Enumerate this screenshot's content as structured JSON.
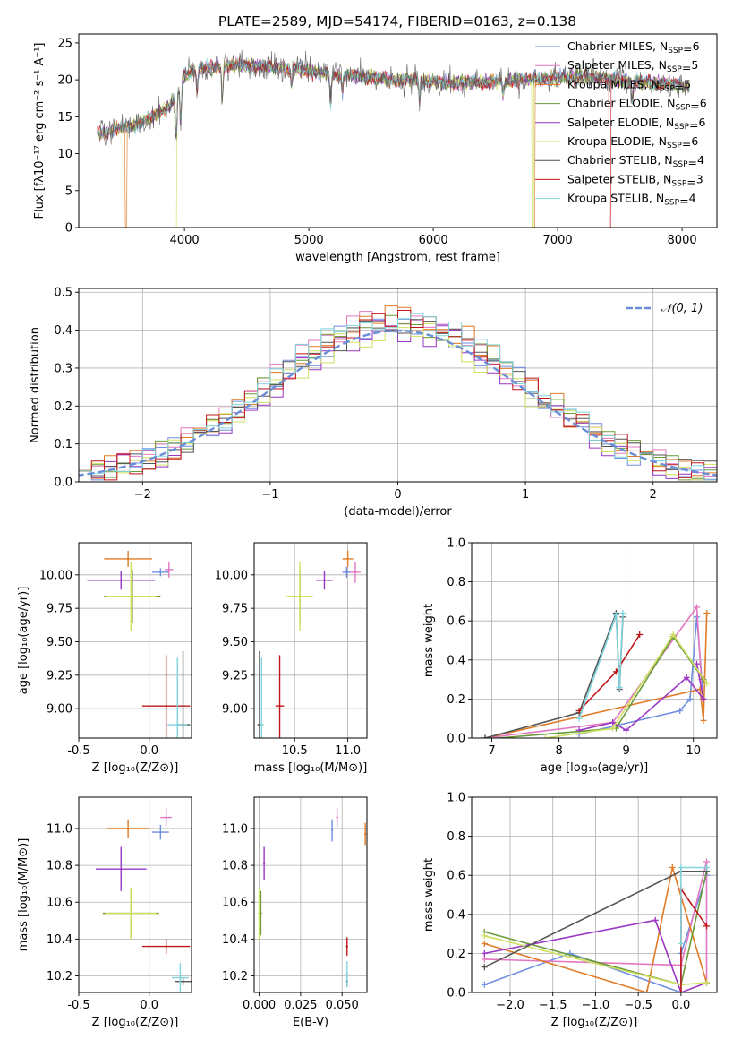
{
  "figure": {
    "title": "PLATE=2589, MJD=54174, FIBERID=0163, z=0.138"
  },
  "colors": [
    "#6f8fe0",
    "#e377c2",
    "#e07b28",
    "#6a9a3a",
    "#9b37c4",
    "#cfe060",
    "#555555",
    "#c0161b",
    "#80d4dc"
  ],
  "chart_data": [
    {
      "id": "spectrum",
      "type": "line",
      "xlabel": "wavelength [Angstrom, rest frame]",
      "ylabel": "Flux [fλ10⁻¹⁷ erg cm⁻² s⁻¹ A⁻¹]",
      "xlim": [
        3150,
        8280
      ],
      "ylim": [
        0,
        26.2
      ],
      "xticks": [
        4000,
        5000,
        6000,
        7000,
        8000
      ],
      "yticks": [
        0,
        5,
        10,
        15,
        20,
        25
      ],
      "legend_position": "top-right",
      "legend": [
        {
          "name": "Chabrier MILES",
          "n_ssp": "6"
        },
        {
          "name": "Salpeter MILES",
          "n_ssp": "5"
        },
        {
          "name": "Kroupa MILES",
          "n_ssp": "5"
        },
        {
          "name": "Chabrier ELODIE",
          "n_ssp": "6"
        },
        {
          "name": "Salpeter ELODIE",
          "n_ssp": "6"
        },
        {
          "name": "Kroupa ELODIE",
          "n_ssp": "6"
        },
        {
          "name": "Chabrier STELIB",
          "n_ssp": "4"
        },
        {
          "name": "Salpeter STELIB",
          "n_ssp": "3"
        },
        {
          "name": "Kroupa STELIB",
          "n_ssp": "4"
        }
      ],
      "continuum": {
        "x": [
          3300,
          3450,
          3600,
          3700,
          3800,
          3900,
          4000,
          4100,
          4300,
          4500,
          4700,
          4900,
          5100,
          5300,
          5500,
          5700,
          5900,
          6100,
          6300,
          6500,
          6700,
          6900,
          7100,
          7300,
          7500,
          7700,
          7900,
          8060
        ],
        "y": [
          12.8,
          13.2,
          13.8,
          14.6,
          15.6,
          16.8,
          20.5,
          21.5,
          21.8,
          22.0,
          21.7,
          21.5,
          21.0,
          20.6,
          20.3,
          20.0,
          19.9,
          19.6,
          19.7,
          19.8,
          20.0,
          20.2,
          20.4,
          20.3,
          20.0,
          19.6,
          19.4,
          19.2
        ]
      },
      "edge_drops": [
        {
          "series": 2,
          "x": 3530
        },
        {
          "series": 5,
          "x": 3930
        },
        {
          "series": 5,
          "x": 6800
        },
        {
          "series": 2,
          "x": 6810
        },
        {
          "series": 7,
          "x": 7420
        }
      ]
    },
    {
      "id": "residuals",
      "type": "area",
      "xlabel": "(data-model)/error",
      "ylabel": "Normed distribution",
      "xlim": [
        -2.5,
        2.5
      ],
      "ylim": [
        0,
        0.51
      ],
      "xticks": [
        -2,
        -1,
        0,
        1,
        2
      ],
      "yticks": [
        0.0,
        0.1,
        0.2,
        0.3,
        0.4,
        0.5
      ],
      "legend_position": "top-right",
      "reference_curve": {
        "label": "𝒩(0, 1)",
        "mean": 0,
        "sigma": 1
      }
    },
    {
      "id": "age-vs-z",
      "type": "scatter",
      "xlabel": "Z [log₁₀(Z/Z⊙)]",
      "ylabel": "age  [log₁₀(age/yr)]",
      "xlim": [
        -0.5,
        0.3
      ],
      "ylim": [
        8.78,
        10.24
      ],
      "xticks": [
        -0.5,
        0.0
      ],
      "yticks": [
        9.0,
        9.25,
        9.5,
        9.75,
        10.0
      ],
      "points": [
        {
          "series": 0,
          "x": 0.08,
          "y": 10.02,
          "xerr": 0.06,
          "yerr": 0.03
        },
        {
          "series": 1,
          "x": 0.14,
          "y": 10.04,
          "xerr": 0.03,
          "yerr": 0.06
        },
        {
          "series": 2,
          "x": -0.15,
          "y": 10.12,
          "xerr": 0.17,
          "yerr": 0.06
        },
        {
          "series": 3,
          "x": -0.12,
          "y": 9.84,
          "xerr": 0.2,
          "yerr": 0.2
        },
        {
          "series": 4,
          "x": -0.2,
          "y": 9.96,
          "xerr": 0.24,
          "yerr": 0.07
        },
        {
          "series": 5,
          "x": -0.13,
          "y": 9.84,
          "xerr": 0.18,
          "yerr": 0.26
        },
        {
          "series": 6,
          "x": 0.24,
          "y": 8.88,
          "xerr": 0.05,
          "yerr": 0.55
        },
        {
          "series": 7,
          "x": 0.12,
          "y": 9.02,
          "xerr": 0.17,
          "yerr": 0.38
        },
        {
          "series": 8,
          "x": 0.2,
          "y": 8.88,
          "xerr": 0.07,
          "yerr": 0.5
        }
      ]
    },
    {
      "id": "age-vs-mass",
      "type": "scatter",
      "xlabel": "mass [log₁₀(M/M⊙)]",
      "ylabel": "",
      "xlim": [
        10.12,
        11.18
      ],
      "ylim": [
        8.78,
        10.24
      ],
      "xticks": [
        10.5,
        11.0
      ],
      "yticks": [
        9.0,
        9.25,
        9.5,
        9.75,
        10.0
      ],
      "points": [
        {
          "series": 0,
          "x": 10.99,
          "y": 10.02,
          "xerr": 0.04,
          "yerr": 0.04
        },
        {
          "series": 1,
          "x": 11.07,
          "y": 10.02,
          "xerr": 0.05,
          "yerr": 0.08
        },
        {
          "series": 2,
          "x": 11.0,
          "y": 10.12,
          "xerr": 0.05,
          "yerr": 0.06
        },
        {
          "series": 3,
          "x": 10.55,
          "y": 9.84,
          "xerr": 0.12,
          "yerr": 0.2
        },
        {
          "series": 4,
          "x": 10.78,
          "y": 9.96,
          "xerr": 0.08,
          "yerr": 0.07
        },
        {
          "series": 5,
          "x": 10.55,
          "y": 9.84,
          "xerr": 0.12,
          "yerr": 0.26
        },
        {
          "series": 6,
          "x": 10.17,
          "y": 8.88,
          "xerr": 0.02,
          "yerr": 0.55
        },
        {
          "series": 7,
          "x": 10.36,
          "y": 9.02,
          "xerr": 0.04,
          "yerr": 0.38
        },
        {
          "series": 8,
          "x": 10.19,
          "y": 8.88,
          "xerr": 0.02,
          "yerr": 0.5
        }
      ]
    },
    {
      "id": "weight-vs-age",
      "type": "line",
      "xlabel": "age  [log₁₀(age/yr)]",
      "ylabel": "mass weight",
      "xlim": [
        6.7,
        10.35
      ],
      "ylim": [
        0,
        1.0
      ],
      "xticks": [
        7,
        8,
        9,
        10
      ],
      "yticks": [
        0.0,
        0.2,
        0.4,
        0.6,
        0.8,
        1.0
      ],
      "series": [
        {
          "series": 0,
          "x": [
            8.3,
            9.8,
            9.95,
            10.05,
            10.15
          ],
          "y": [
            0.02,
            0.14,
            0.2,
            0.62,
            0.2
          ]
        },
        {
          "series": 1,
          "x": [
            6.9,
            8.8,
            10.05,
            10.12
          ],
          "y": [
            0.0,
            0.08,
            0.67,
            0.3
          ]
        },
        {
          "series": 2,
          "x": [
            6.9,
            10.1,
            10.15,
            10.2
          ],
          "y": [
            0.0,
            0.25,
            0.09,
            0.64
          ]
        },
        {
          "series": 3,
          "x": [
            7.1,
            8.85,
            9.7,
            10.15
          ],
          "y": [
            0.0,
            0.05,
            0.52,
            0.3
          ]
        },
        {
          "series": 4,
          "x": [
            8.3,
            8.8,
            9.0,
            9.9,
            10.15,
            10.05
          ],
          "y": [
            0.04,
            0.08,
            0.04,
            0.31,
            0.2,
            0.38
          ]
        },
        {
          "series": 5,
          "x": [
            7.8,
            8.8,
            9.7,
            10.2
          ],
          "y": [
            0.0,
            0.05,
            0.53,
            0.28
          ]
        },
        {
          "series": 6,
          "x": [
            6.9,
            8.3,
            8.85,
            8.9,
            8.95
          ],
          "y": [
            0.0,
            0.13,
            0.64,
            0.25,
            0.62
          ]
        },
        {
          "series": 7,
          "x": [
            8.3,
            8.85,
            9.2
          ],
          "y": [
            0.14,
            0.34,
            0.53
          ]
        },
        {
          "series": 8,
          "x": [
            8.3,
            8.85,
            8.9,
            8.95
          ],
          "y": [
            0.1,
            0.63,
            0.26,
            0.64
          ]
        }
      ]
    },
    {
      "id": "mass-vs-z",
      "type": "scatter",
      "xlabel": "Z [log₁₀(Z/Z⊙)]",
      "ylabel": "mass [log₁₀(M/M⊙)]",
      "xlim": [
        -0.5,
        0.3
      ],
      "ylim": [
        10.11,
        11.17
      ],
      "xticks": [
        -0.5,
        0.0
      ],
      "yticks": [
        10.2,
        10.4,
        10.6,
        10.8,
        11.0
      ],
      "points": [
        {
          "series": 0,
          "x": 0.08,
          "y": 10.98,
          "xerr": 0.06,
          "yerr": 0.04
        },
        {
          "series": 1,
          "x": 0.12,
          "y": 11.06,
          "xerr": 0.04,
          "yerr": 0.05
        },
        {
          "series": 2,
          "x": -0.15,
          "y": 11.0,
          "xerr": 0.15,
          "yerr": 0.05
        },
        {
          "series": 3,
          "x": -0.13,
          "y": 10.54,
          "xerr": 0.2,
          "yerr": 0.13
        },
        {
          "series": 4,
          "x": -0.2,
          "y": 10.78,
          "xerr": 0.18,
          "yerr": 0.12
        },
        {
          "series": 5,
          "x": -0.13,
          "y": 10.54,
          "xerr": 0.18,
          "yerr": 0.14
        },
        {
          "series": 6,
          "x": 0.24,
          "y": 10.17,
          "xerr": 0.06,
          "yerr": 0.02
        },
        {
          "series": 7,
          "x": 0.12,
          "y": 10.36,
          "xerr": 0.17,
          "yerr": 0.04
        },
        {
          "series": 8,
          "x": 0.22,
          "y": 10.19,
          "xerr": 0.06,
          "yerr": 0.08
        }
      ]
    },
    {
      "id": "mass-vs-ebv",
      "type": "scatter",
      "xlabel": "E(B-V)",
      "ylabel": "",
      "xlim": [
        -0.003,
        0.065
      ],
      "ylim": [
        10.11,
        11.17
      ],
      "xticks": [
        0.0,
        0.025,
        0.05
      ],
      "yticks": [
        10.2,
        10.4,
        10.6,
        10.8,
        11.0
      ],
      "points": [
        {
          "series": 0,
          "x": 0.044,
          "y": 10.99,
          "xerr": 0.0,
          "yerr": 0.06
        },
        {
          "series": 1,
          "x": 0.047,
          "y": 11.06,
          "xerr": 0.0,
          "yerr": 0.05
        },
        {
          "series": 2,
          "x": 0.064,
          "y": 10.97,
          "xerr": 0.0,
          "yerr": 0.06
        },
        {
          "series": 3,
          "x": 0.001,
          "y": 10.54,
          "xerr": 0.0,
          "yerr": 0.12
        },
        {
          "series": 4,
          "x": 0.003,
          "y": 10.81,
          "xerr": 0.0,
          "yerr": 0.09
        },
        {
          "series": 5,
          "x": 0.0,
          "y": 10.54,
          "xerr": 0.0,
          "yerr": 0.14
        },
        {
          "series": 6,
          "x": 0.053,
          "y": 10.17,
          "xerr": 0.0,
          "yerr": 0.03
        },
        {
          "series": 7,
          "x": 0.053,
          "y": 10.36,
          "xerr": 0.0,
          "yerr": 0.05
        },
        {
          "series": 8,
          "x": 0.053,
          "y": 10.21,
          "xerr": 0.0,
          "yerr": 0.07
        }
      ]
    },
    {
      "id": "weight-vs-z",
      "type": "line",
      "xlabel": "Z [log₁₀(Z/Z⊙)]",
      "ylabel": "mass weight",
      "xlim": [
        -2.45,
        0.42
      ],
      "ylim": [
        0,
        1.0
      ],
      "xticks": [
        -2.0,
        -1.5,
        -1.0,
        -0.5,
        0.0
      ],
      "yticks": [
        0.0,
        0.2,
        0.4,
        0.6,
        0.8,
        1.0
      ],
      "series": [
        {
          "series": 0,
          "x": [
            -2.3,
            -1.3,
            0.0,
            0.0,
            0.3
          ],
          "y": [
            0.04,
            0.2,
            0.0,
            0.2,
            0.6
          ]
        },
        {
          "series": 1,
          "x": [
            -2.3,
            0.0,
            0.3,
            0.3
          ],
          "y": [
            0.17,
            0.14,
            0.67,
            0.05
          ]
        },
        {
          "series": 2,
          "x": [
            -2.3,
            -0.4,
            -0.1,
            0.3
          ],
          "y": [
            0.25,
            0.0,
            0.64,
            0.05
          ]
        },
        {
          "series": 3,
          "x": [
            -2.3,
            0.0,
            0.3
          ],
          "y": [
            0.31,
            0.04,
            0.62
          ]
        },
        {
          "series": 4,
          "x": [
            -2.3,
            -0.3,
            0.0,
            0.3
          ],
          "y": [
            0.2,
            0.37,
            0.0,
            0.05
          ]
        },
        {
          "series": 5,
          "x": [
            -2.3,
            0.0,
            0.3
          ],
          "y": [
            0.29,
            0.04,
            0.05
          ]
        },
        {
          "series": 6,
          "x": [
            -2.3,
            0.0,
            0.3
          ],
          "y": [
            0.13,
            0.62,
            0.62
          ]
        },
        {
          "series": 7,
          "x": [
            0.0,
            0.0,
            0.3
          ],
          "y": [
            0.0,
            0.53,
            0.34
          ]
        },
        {
          "series": 8,
          "x": [
            0.0,
            0.0,
            0.3
          ],
          "y": [
            0.25,
            0.64,
            0.64
          ]
        }
      ]
    }
  ]
}
